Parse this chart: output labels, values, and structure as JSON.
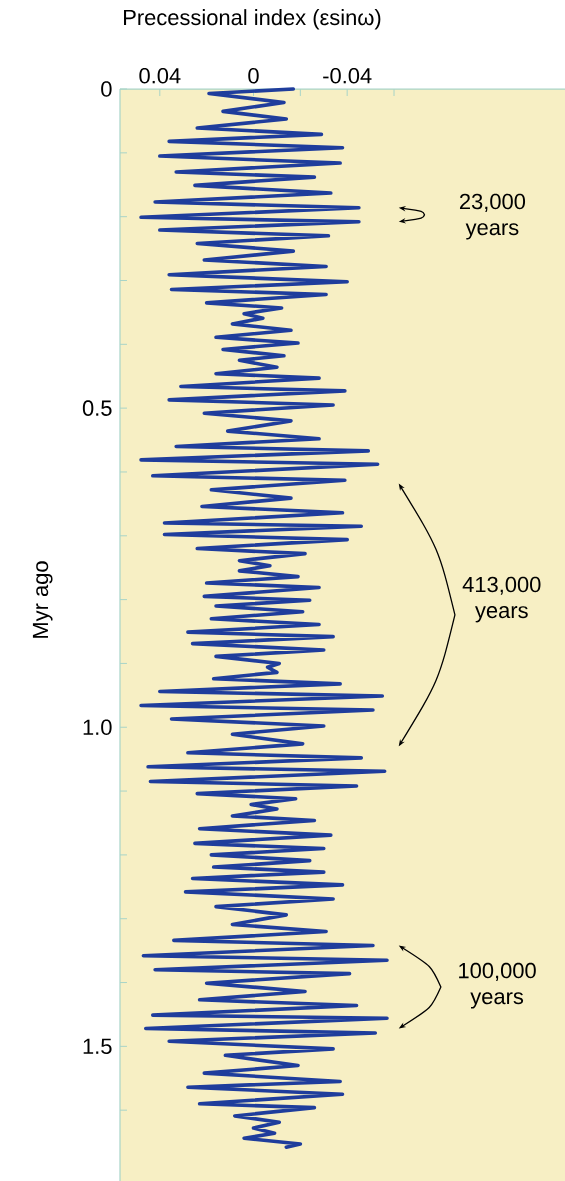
{
  "chart_data": {
    "type": "line",
    "xlabel": "Precessional index (εsinω)",
    "ylabel": "Myr ago",
    "annotations": [
      "23,000 years",
      "413,000 years",
      "100,000 years"
    ],
    "color": "#1f3d9c",
    "xlim": [
      0.057,
      -0.133
    ],
    "ylim": [
      1.711,
      0
    ],
    "xticks": [
      0.04,
      0,
      {
        "value": -0.02,
        "label": null
      },
      -0.04,
      {
        "value": -0.06,
        "label": null
      }
    ],
    "yticks": [
      0,
      {
        "value": 0.1,
        "label": null
      },
      {
        "value": 0.2,
        "label": null
      },
      {
        "value": 0.3,
        "label": null
      },
      {
        "value": 0.4,
        "label": null
      },
      0.5,
      {
        "value": 0.6,
        "label": null
      },
      {
        "value": 0.7,
        "label": null
      },
      {
        "value": 0.8,
        "label": null
      },
      {
        "value": 0.9,
        "label": null
      },
      {
        "value": 1,
        "label": "1.0"
      },
      {
        "value": 1.1,
        "label": null
      },
      {
        "value": 1.2,
        "label": null
      },
      {
        "value": 1.3,
        "label": null
      },
      {
        "value": 1.4,
        "label": null
      },
      1.5,
      {
        "value": 1.6,
        "label": null
      }
    ],
    "x": [
      -0.017,
      0.019,
      -0.013,
      0.013,
      -0.014,
      0.024,
      -0.029,
      0.036,
      -0.038,
      0.04,
      -0.037,
      0.033,
      -0.026,
      0.025,
      -0.033,
      0.042,
      -0.045,
      0.048,
      -0.045,
      0.04,
      -0.032,
      0.024,
      -0.017,
      0.021,
      -0.031,
      0.036,
      -0.04,
      0.035,
      -0.031,
      0.02,
      -0.012,
      0.004,
      -0.004,
      0.009,
      -0.016,
      0.016,
      -0.019,
      0.013,
      -0.013,
      0.006,
      -0.01,
      0.016,
      -0.028,
      0.031,
      -0.039,
      0.036,
      -0.034,
      0.021,
      -0.016,
      0.011,
      -0.028,
      0.033,
      -0.049,
      0.048,
      -0.053,
      0.043,
      -0.039,
      0.018,
      -0.016,
      0.022,
      -0.038,
      0.038,
      -0.046,
      0.038,
      -0.04,
      0.024,
      -0.022,
      0.006,
      -0.007,
      0.006,
      -0.019,
      0.02,
      -0.028,
      0.021,
      -0.024,
      0.016,
      -0.021,
      0.018,
      -0.028,
      0.028,
      -0.034,
      0.026,
      -0.03,
      0.016,
      -0.011,
      -0.006,
      -0.01,
      0.017,
      -0.037,
      0.04,
      -0.055,
      0.048,
      -0.051,
      0.035,
      -0.03,
      0.009,
      -0.021,
      0.028,
      -0.046,
      0.045,
      -0.056,
      0.044,
      -0.044,
      0.024,
      -0.018,
      0.001,
      -0.01,
      0.009,
      -0.026,
      0.023,
      -0.033,
      0.025,
      -0.03,
      0.018,
      -0.024,
      0.017,
      -0.03,
      0.026,
      -0.038,
      0.029,
      -0.034,
      0.016,
      -0.014,
      0.009,
      -0.031,
      0.034,
      -0.051,
      0.047,
      -0.057,
      0.042,
      -0.041,
      0.02,
      -0.022,
      0.023,
      -0.044,
      0.043,
      -0.057,
      0.046,
      -0.052,
      0.036,
      -0.034,
      0.012,
      -0.019,
      0.021,
      -0.037,
      0.028,
      -0.038,
      0.023,
      -0.026,
      0.008,
      -0.011,
      0.0,
      -0.009,
      0.004,
      -0.02,
      -0.014
    ],
    "values": [
      0,
      0.007,
      0.021,
      0.035,
      0.047,
      0.061,
      0.071,
      0.082,
      0.092,
      0.105,
      0.116,
      0.13,
      0.138,
      0.151,
      0.163,
      0.177,
      0.186,
      0.201,
      0.208,
      0.221,
      0.23,
      0.242,
      0.254,
      0.268,
      0.278,
      0.291,
      0.302,
      0.314,
      0.322,
      0.335,
      0.343,
      0.352,
      0.359,
      0.368,
      0.378,
      0.389,
      0.398,
      0.408,
      0.418,
      0.425,
      0.436,
      0.446,
      0.453,
      0.466,
      0.473,
      0.487,
      0.495,
      0.508,
      0.52,
      0.536,
      0.548,
      0.56,
      0.567,
      0.581,
      0.588,
      0.606,
      0.613,
      0.628,
      0.641,
      0.654,
      0.664,
      0.68,
      0.685,
      0.698,
      0.706,
      0.72,
      0.728,
      0.739,
      0.747,
      0.755,
      0.764,
      0.774,
      0.781,
      0.795,
      0.801,
      0.81,
      0.819,
      0.83,
      0.839,
      0.851,
      0.858,
      0.869,
      0.879,
      0.889,
      0.9,
      0.906,
      0.914,
      0.924,
      0.932,
      0.944,
      0.951,
      0.966,
      0.973,
      0.987,
      0.998,
      1.011,
      1.026,
      1.04,
      1.048,
      1.062,
      1.069,
      1.085,
      1.092,
      1.104,
      1.112,
      1.121,
      1.128,
      1.139,
      1.146,
      1.159,
      1.169,
      1.182,
      1.19,
      1.2,
      1.209,
      1.219,
      1.227,
      1.237,
      1.247,
      1.258,
      1.269,
      1.281,
      1.294,
      1.309,
      1.32,
      1.334,
      1.342,
      1.358,
      1.365,
      1.38,
      1.386,
      1.401,
      1.414,
      1.427,
      1.436,
      1.451,
      1.456,
      1.472,
      1.479,
      1.492,
      1.504,
      1.514,
      1.53,
      1.542,
      1.555,
      1.564,
      1.575,
      1.59,
      1.596,
      1.609,
      1.619,
      1.628,
      1.636,
      1.644,
      1.653,
      1.658
    ]
  }
}
